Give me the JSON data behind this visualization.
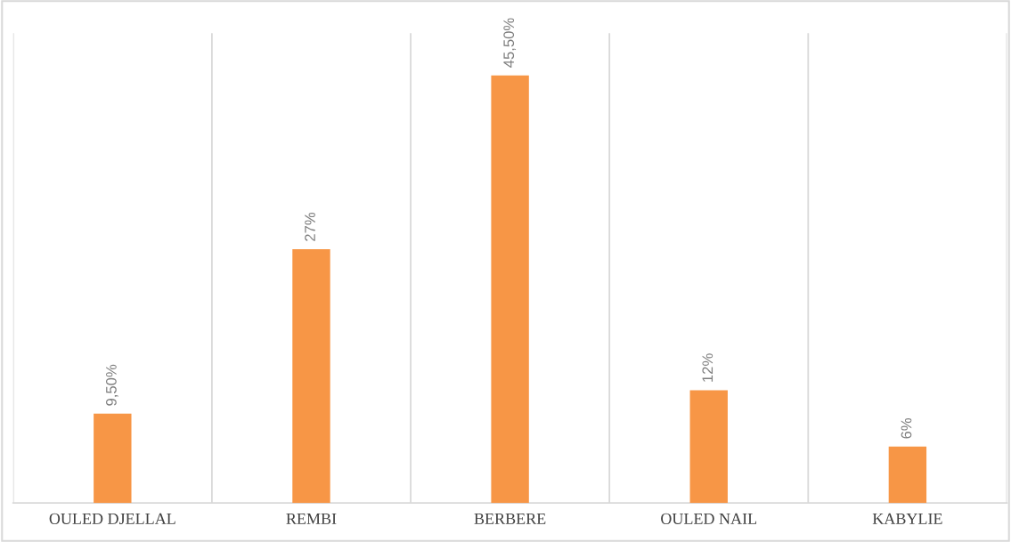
{
  "chart_data": {
    "type": "bar",
    "categories": [
      "OULED DJELLAL",
      "REMBI",
      "BERBERE",
      "OULED NAIL",
      "KABYLIE"
    ],
    "values": [
      9.5,
      27,
      45.5,
      12,
      6
    ],
    "value_labels": [
      "9,50%",
      "27%",
      "45,50%",
      "12%",
      "6%"
    ],
    "color": "#f79646",
    "ylim": [
      0,
      50
    ],
    "grid": "x",
    "tick_labels": "x"
  }
}
